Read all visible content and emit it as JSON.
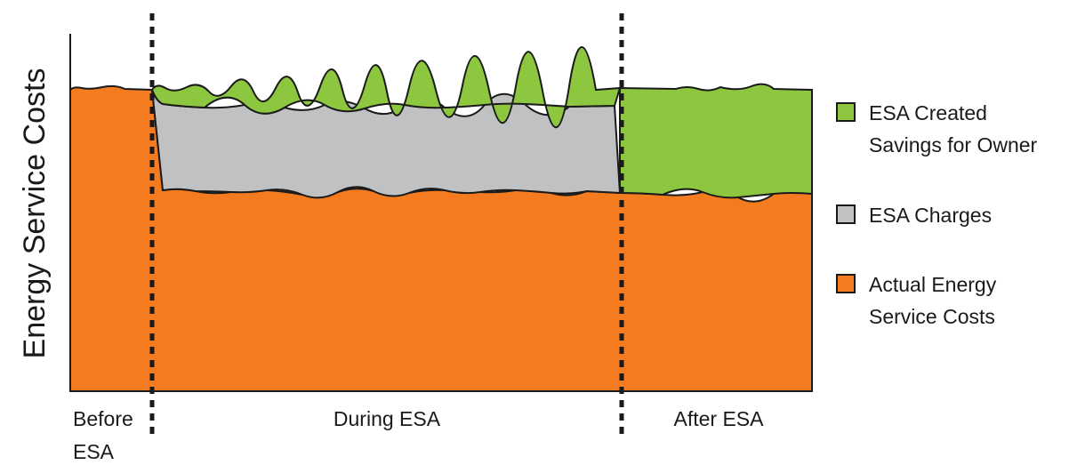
{
  "chart_data": {
    "type": "area",
    "ylabel": "Energy Service Costs",
    "xlabel": "",
    "phases": [
      {
        "label_lines": [
          "Before",
          "ESA"
        ]
      },
      {
        "label_lines": [
          "During ESA"
        ]
      },
      {
        "label_lines": [
          "After ESA"
        ]
      }
    ],
    "series": [
      {
        "name": "ESA Created Savings for Owner",
        "color": "#8dc63f",
        "legend_lines": [
          "ESA Created",
          "Savings for Owner"
        ],
        "values": {
          "before": 0,
          "during": 0.05,
          "after": 0.35
        }
      },
      {
        "name": "ESA Charges",
        "color": "#c0c1c3",
        "legend_lines": [
          "ESA Charges"
        ],
        "values": {
          "before": 0,
          "during": 0.3,
          "after": 0
        }
      },
      {
        "name": "Actual Energy Service Costs",
        "color": "#f47b20",
        "legend_lines": [
          "Actual Energy",
          "Service Costs"
        ],
        "values": {
          "before": 1.0,
          "during": 0.65,
          "after": 0.65
        }
      }
    ],
    "ylim": [
      0,
      1.1
    ],
    "grid": false,
    "legend_position": "right",
    "phase_dividers": "dotted vertical lines"
  }
}
